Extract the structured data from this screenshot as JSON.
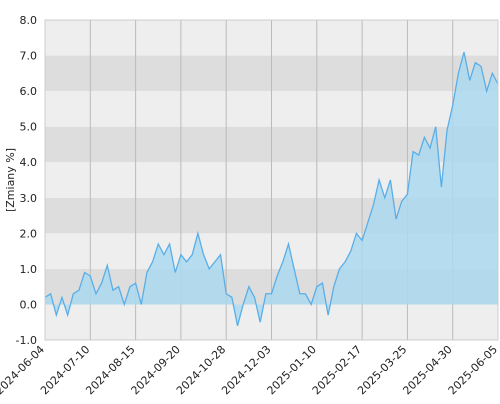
{
  "chart_data": {
    "type": "area",
    "y_label": "[Zmiany %]",
    "categories": [
      "2024-06-04",
      null,
      null,
      null,
      null,
      null,
      null,
      null,
      "2024-07-10",
      null,
      null,
      null,
      null,
      null,
      null,
      null,
      "2024-08-15",
      null,
      null,
      null,
      null,
      null,
      null,
      null,
      "2024-09-20",
      null,
      null,
      null,
      null,
      null,
      null,
      null,
      "2024-10-28",
      null,
      null,
      null,
      null,
      null,
      null,
      null,
      "2024-12-03",
      null,
      null,
      null,
      null,
      null,
      null,
      null,
      "2025-01-10",
      null,
      null,
      null,
      null,
      null,
      null,
      null,
      "2025-02-17",
      null,
      null,
      null,
      null,
      null,
      null,
      null,
      "2025-03-25",
      null,
      null,
      null,
      null,
      null,
      null,
      null,
      "2025-04-30",
      null,
      null,
      null,
      null,
      null,
      null,
      null,
      "2025-06-05"
    ],
    "values": [
      0.2,
      0.3,
      -0.3,
      0.2,
      -0.3,
      0.3,
      0.4,
      0.9,
      0.8,
      0.3,
      0.6,
      1.1,
      0.4,
      0.5,
      0.0,
      0.5,
      0.6,
      0.0,
      0.9,
      1.2,
      1.7,
      1.4,
      1.7,
      0.9,
      1.4,
      1.2,
      1.4,
      2.0,
      1.4,
      1.0,
      1.2,
      1.4,
      0.3,
      0.2,
      -0.6,
      0.0,
      0.5,
      0.2,
      -0.5,
      0.3,
      0.3,
      0.8,
      1.2,
      1.7,
      1.0,
      0.3,
      0.3,
      0.0,
      0.5,
      0.6,
      -0.3,
      0.5,
      1.0,
      1.2,
      1.5,
      2.0,
      1.8,
      2.3,
      2.8,
      3.5,
      3.0,
      3.5,
      2.4,
      2.9,
      3.1,
      4.3,
      4.2,
      4.7,
      4.4,
      5.0,
      3.3,
      4.9,
      5.6,
      6.5,
      7.1,
      6.3,
      6.8,
      6.7,
      6.0,
      6.5,
      6.2
    ],
    "color": "#5aaee8",
    "fill_color": "#aad9ef",
    "band_colors": [
      "#dddddd",
      "#eeeeee"
    ],
    "ylim": [
      -1,
      8
    ],
    "yticks": [
      {
        "value": -1,
        "label": "-1.0"
      },
      {
        "value": 0,
        "label": "0.0"
      },
      {
        "value": 1,
        "label": "1.0"
      },
      {
        "value": 2,
        "label": "2.0"
      },
      {
        "value": 3,
        "label": "3.0"
      },
      {
        "value": 4,
        "label": "4.0"
      },
      {
        "value": 5,
        "label": "5.0"
      },
      {
        "value": 6,
        "label": "6.0"
      },
      {
        "value": 7,
        "label": "7.0"
      },
      {
        "value": 8,
        "label": "8.0"
      }
    ],
    "grid": true
  }
}
